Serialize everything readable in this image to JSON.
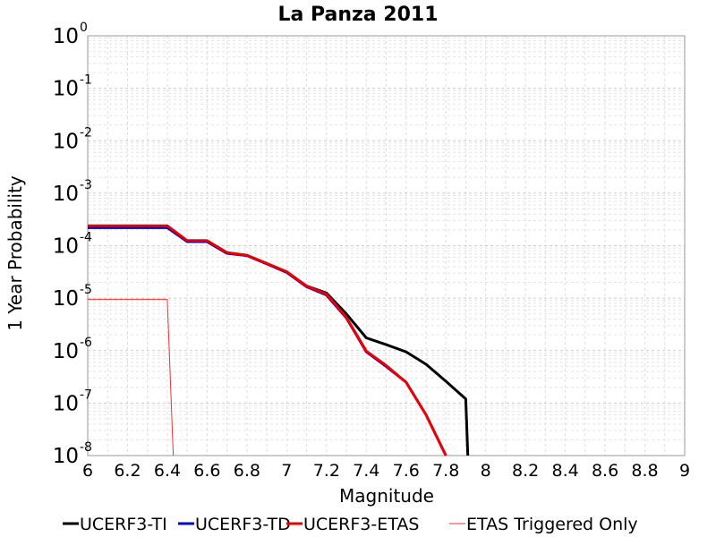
{
  "chart_data": {
    "type": "line",
    "title": "La Panza 2011",
    "xlabel": "Magnitude",
    "ylabel": "1 Year Probability",
    "xlim": [
      6,
      9
    ],
    "ylim": [
      1e-08,
      1
    ],
    "yscale": "log",
    "grid": true,
    "legend_position": "bottom",
    "x_ticks": [
      "6",
      "6.2",
      "6.4",
      "6.6",
      "6.8",
      "7",
      "7.2",
      "7.4",
      "7.6",
      "7.8",
      "8",
      "8.2",
      "8.4",
      "8.6",
      "8.8",
      "9"
    ],
    "y_ticks": [
      {
        "base": "10",
        "exp": "0"
      },
      {
        "base": "10",
        "exp": "-1"
      },
      {
        "base": "10",
        "exp": "-2"
      },
      {
        "base": "10",
        "exp": "-3"
      },
      {
        "base": "10",
        "exp": "-4"
      },
      {
        "base": "10",
        "exp": "-5"
      },
      {
        "base": "10",
        "exp": "-6"
      },
      {
        "base": "10",
        "exp": "-7"
      },
      {
        "base": "10",
        "exp": "-8"
      }
    ],
    "series": [
      {
        "name": "UCERF3-TI",
        "color": "#000000",
        "width": 3,
        "x": [
          6.0,
          6.1,
          6.2,
          6.3,
          6.4,
          6.5,
          6.6,
          6.7,
          6.8,
          6.9,
          7.0,
          7.1,
          7.2,
          7.3,
          7.4,
          7.5,
          7.6,
          7.7,
          7.8,
          7.9,
          7.91
        ],
        "y": [
          0.00023,
          0.00023,
          0.00023,
          0.00023,
          0.00023,
          0.00012,
          0.00012,
          7.2e-05,
          6.5e-05,
          4.5e-05,
          3.1e-05,
          1.7e-05,
          1.25e-05,
          5e-06,
          1.75e-06,
          1.3e-06,
          9.5e-07,
          5.5e-07,
          2.6e-07,
          1.2e-07,
          1e-08
        ]
      },
      {
        "name": "UCERF3-TD",
        "color": "#0000cc",
        "width": 3,
        "x": [
          6.0,
          6.1,
          6.2,
          6.3,
          6.4,
          6.5,
          6.6,
          6.7,
          6.8,
          6.9,
          7.0,
          7.1,
          7.2,
          7.3,
          7.4,
          7.5,
          7.6,
          7.7,
          7.8
        ],
        "y": [
          0.00022,
          0.00022,
          0.00022,
          0.00022,
          0.00022,
          0.00012,
          0.00012,
          7.2e-05,
          6.5e-05,
          4.5e-05,
          3.1e-05,
          1.65e-05,
          1.15e-05,
          4.2e-06,
          9.5e-07,
          5e-07,
          2.5e-07,
          6e-08,
          1e-08
        ]
      },
      {
        "name": "UCERF3-ETAS",
        "color": "#ee0000",
        "width": 3,
        "x": [
          6.0,
          6.1,
          6.2,
          6.3,
          6.4,
          6.5,
          6.6,
          6.7,
          6.8,
          6.9,
          7.0,
          7.1,
          7.2,
          7.3,
          7.4,
          7.5,
          7.6,
          7.7,
          7.8
        ],
        "y": [
          0.00024,
          0.00024,
          0.00024,
          0.00024,
          0.00024,
          0.000125,
          0.000125,
          7.4e-05,
          6.6e-05,
          4.6e-05,
          3.2e-05,
          1.7e-05,
          1.2e-05,
          4.3e-06,
          9.8e-07,
          5.2e-07,
          2.5e-07,
          6e-08,
          1e-08
        ]
      },
      {
        "name": "ETAS Triggered Only",
        "color": "#ee3333",
        "width": 1,
        "x": [
          6.0,
          6.1,
          6.2,
          6.3,
          6.4,
          6.43
        ],
        "y": [
          9.5e-06,
          9.5e-06,
          9.5e-06,
          9.5e-06,
          9.5e-06,
          1e-08
        ]
      }
    ]
  }
}
